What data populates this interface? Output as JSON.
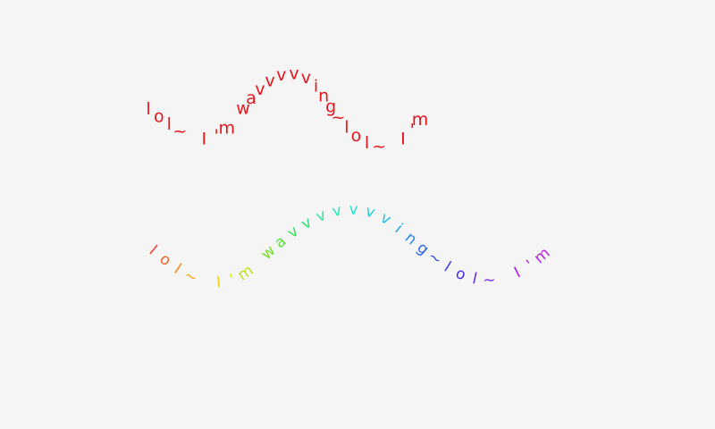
{
  "wave_1": {
    "text": "lol~ I'm wavvvvving~lol~ I'm",
    "color": "#e8141b"
  },
  "wave_2": {
    "text": "lol~ I'm wavvvvvvving~lol~ I'm",
    "colors": [
      "#e8442a",
      "#f5a623",
      "#e5e51a",
      "#7fe020",
      "#2ee06a",
      "#2ee8c8",
      "#27b8f0",
      "#2a5ce8",
      "#4a28e8",
      "#a020f0",
      "#c020e8"
    ]
  }
}
